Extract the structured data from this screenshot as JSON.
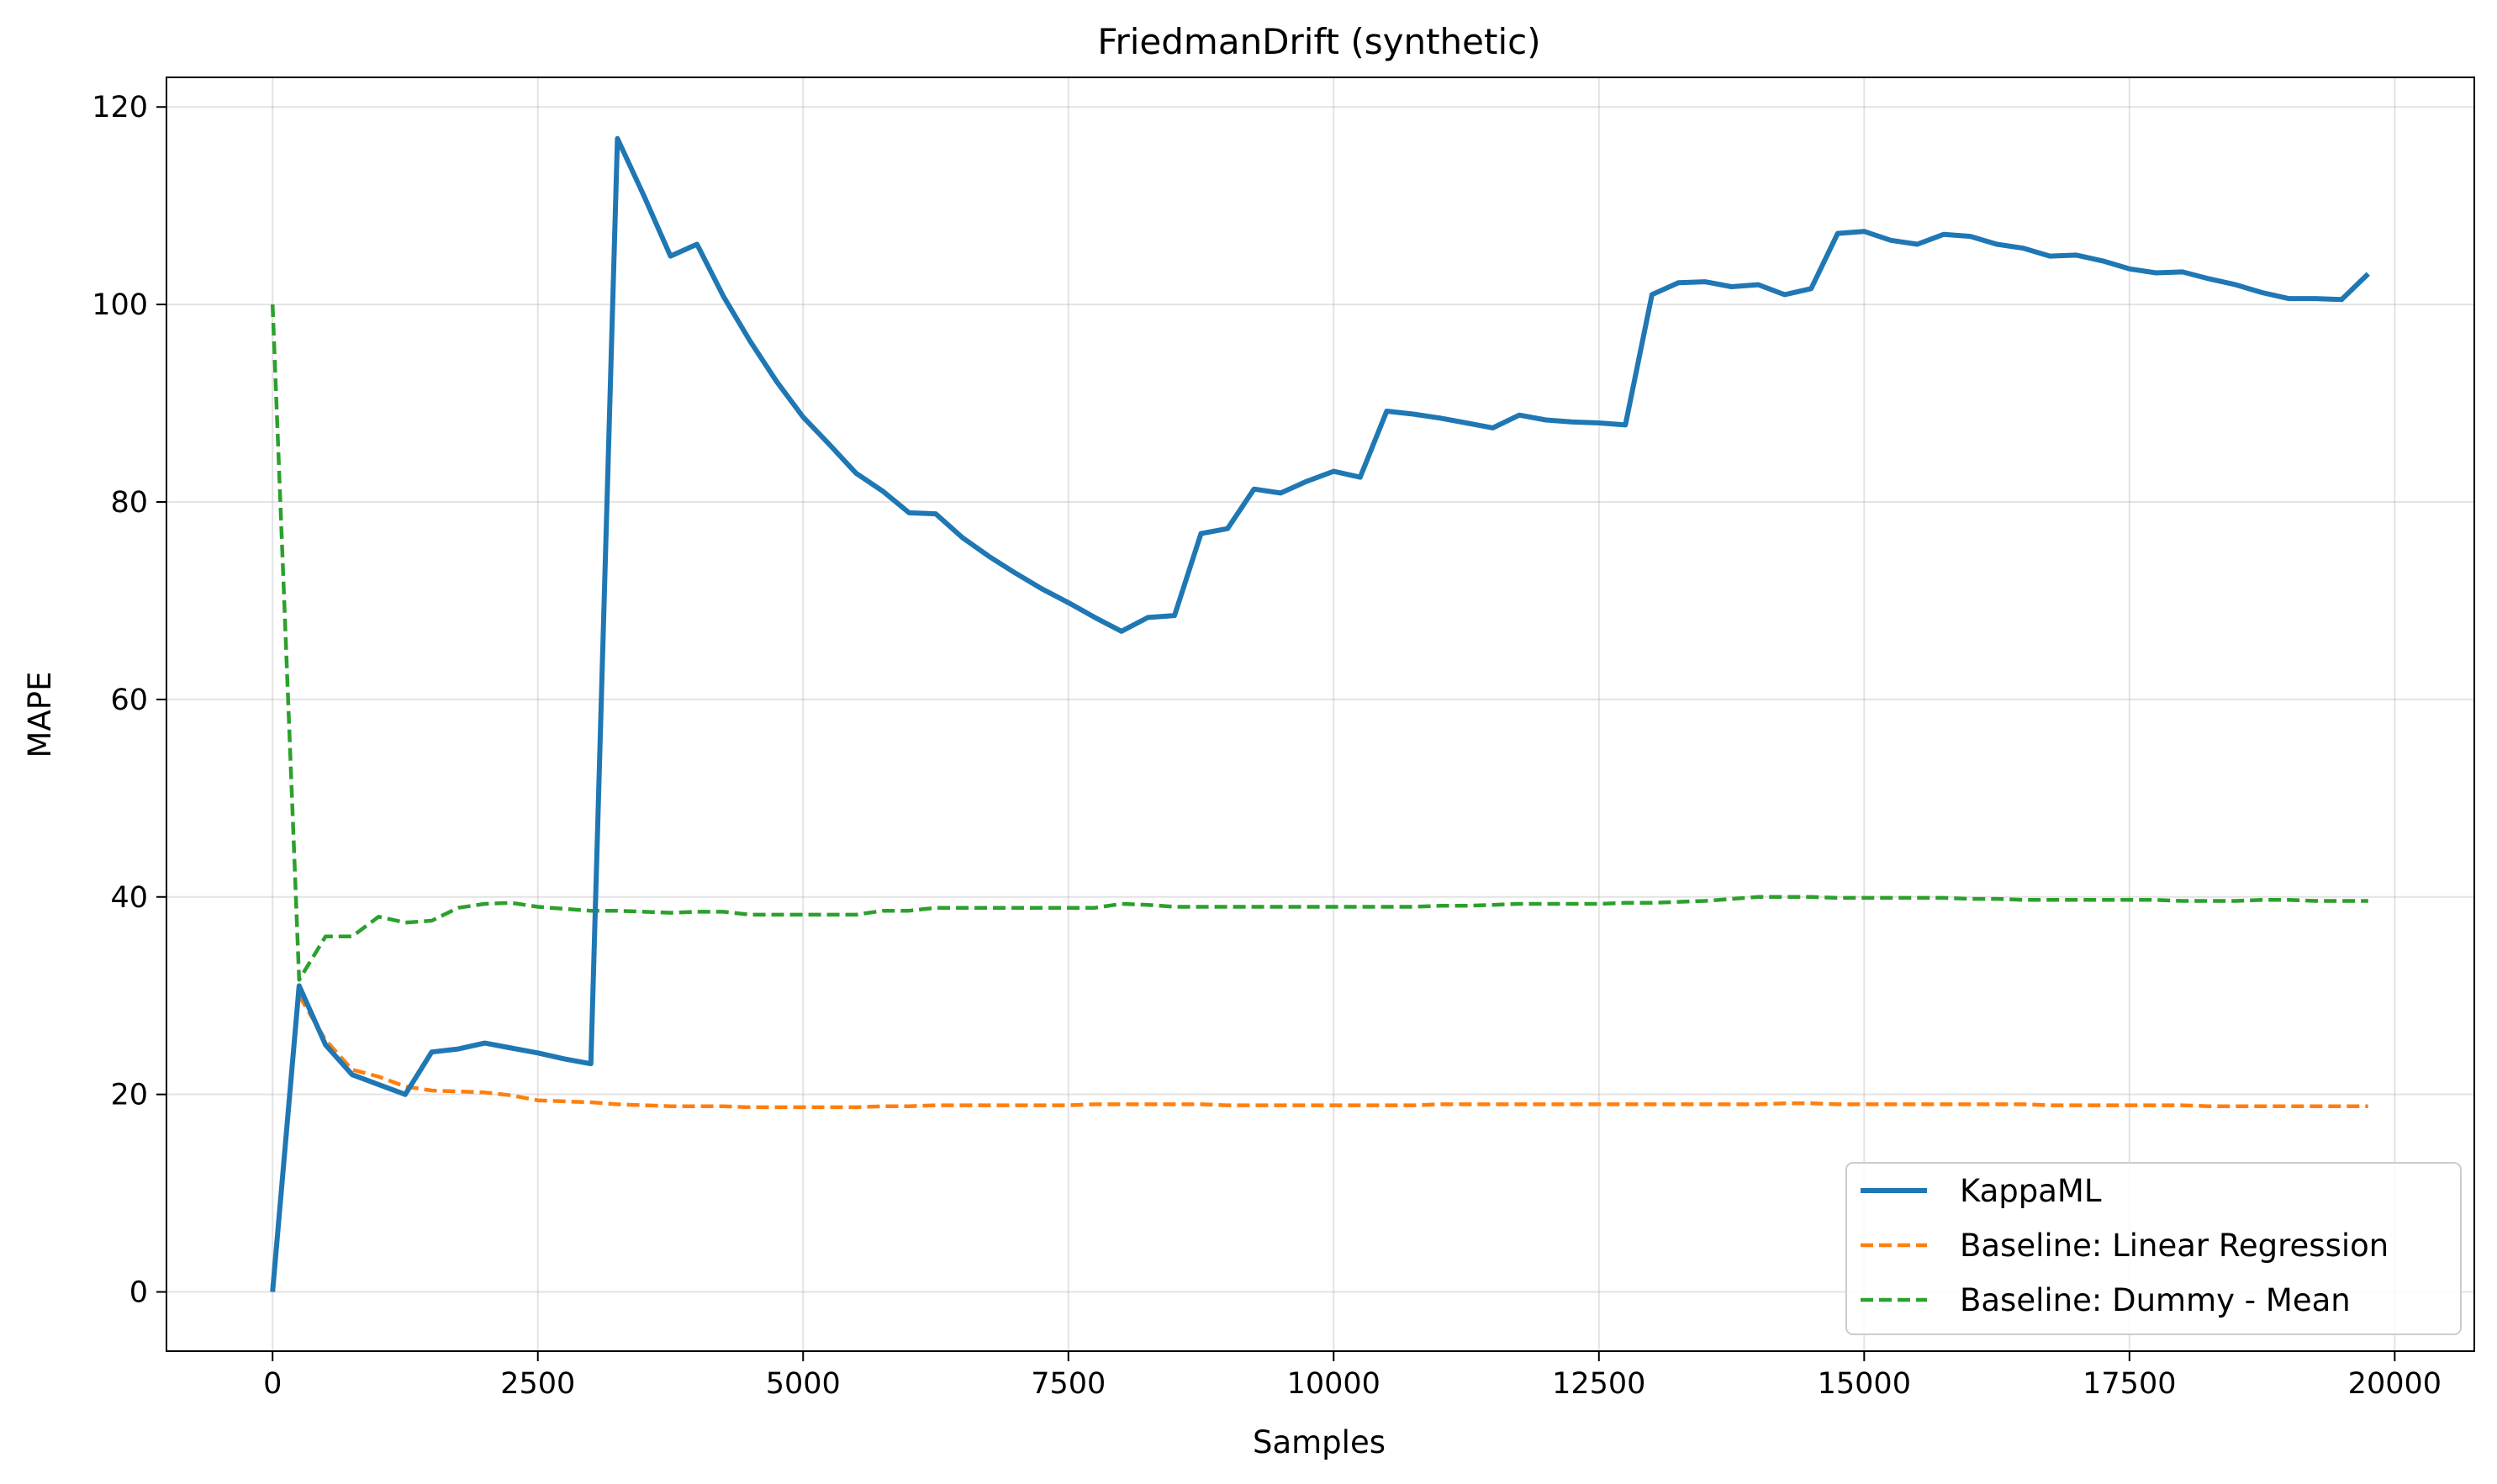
{
  "chart_data": {
    "type": "line",
    "title": "FriedmanDrift (synthetic)",
    "xlabel": "Samples",
    "ylabel": "MAPE",
    "xlim": [
      -1000,
      20750
    ],
    "ylim": [
      -6,
      123
    ],
    "xticks": [
      0,
      2500,
      5000,
      7500,
      10000,
      12500,
      15000,
      17500,
      20000
    ],
    "yticks": [
      0,
      20,
      40,
      60,
      80,
      100,
      120
    ],
    "grid": true,
    "legend_position": "lower-right",
    "x": [
      0,
      250,
      500,
      750,
      1000,
      1250,
      1500,
      1750,
      2000,
      2250,
      2500,
      2750,
      3000,
      3250,
      3500,
      3750,
      4000,
      4250,
      4500,
      4750,
      5000,
      5250,
      5500,
      5750,
      6000,
      6250,
      6500,
      6750,
      7000,
      7250,
      7500,
      7750,
      8000,
      8250,
      8500,
      8750,
      9000,
      9250,
      9500,
      9750,
      10000,
      10250,
      10500,
      10750,
      11000,
      11250,
      11500,
      11750,
      12000,
      12250,
      12500,
      12750,
      13000,
      13250,
      13500,
      13750,
      14000,
      14250,
      14500,
      14750,
      15000,
      15250,
      15500,
      15750,
      16000,
      16250,
      16500,
      16750,
      17000,
      17250,
      17500,
      17750,
      18000,
      18250,
      18500,
      18750,
      19000,
      19250,
      19500,
      19750
    ],
    "series": [
      {
        "name": "KappaML",
        "color": "#1f77b4",
        "style": "solid",
        "values": [
          0,
          31,
          25,
          22,
          21,
          20,
          24.3,
          24.6,
          25.2,
          24.7,
          24.2,
          23.6,
          23.1,
          116.8,
          111,
          104.9,
          106.1,
          100.8,
          96.3,
          92.2,
          88.6,
          85.8,
          82.9,
          81.1,
          78.9,
          78.8,
          76.4,
          74.5,
          72.8,
          71.2,
          69.8,
          68.3,
          66.9,
          68.3,
          68.5,
          76.8,
          77.3,
          81.3,
          80.9,
          82.1,
          83.1,
          82.5,
          89.2,
          88.9,
          88.5,
          88,
          87.5,
          88.8,
          88.3,
          88.1,
          88,
          87.8,
          101,
          102.2,
          102.3,
          101.8,
          102,
          101,
          101.6,
          107.2,
          107.4,
          106.5,
          106.1,
          107.1,
          106.9,
          106.1,
          105.7,
          104.9,
          105,
          104.4,
          103.6,
          103.2,
          103.3,
          102.6,
          102,
          101.2,
          100.6,
          100.6,
          100.5,
          103.1
        ]
      },
      {
        "name": "Baseline: Linear Regression",
        "color": "#ff7f0e",
        "style": "dashed",
        "values": [
          null,
          30,
          25.5,
          22.5,
          21.8,
          20.8,
          20.4,
          20.3,
          20.2,
          19.9,
          19.4,
          19.3,
          19.2,
          19,
          18.9,
          18.8,
          18.8,
          18.8,
          18.7,
          18.7,
          18.7,
          18.7,
          18.7,
          18.8,
          18.8,
          18.9,
          18.9,
          18.9,
          18.9,
          18.9,
          18.9,
          19,
          19,
          19,
          19,
          19,
          18.9,
          18.9,
          18.9,
          18.9,
          18.9,
          18.9,
          18.9,
          18.9,
          19,
          19,
          19,
          19,
          19,
          19,
          19,
          19,
          19,
          19,
          19,
          19,
          19,
          19.1,
          19.1,
          19,
          19,
          19,
          19,
          19,
          19,
          19,
          19,
          18.9,
          18.9,
          18.9,
          18.9,
          18.9,
          18.9,
          18.8,
          18.8,
          18.8,
          18.8,
          18.8,
          18.8,
          18.8
        ]
      },
      {
        "name": "Baseline: Dummy - Mean",
        "color": "#2ca02c",
        "style": "dashed",
        "values": [
          100,
          31.6,
          36,
          36,
          38,
          37.4,
          37.6,
          38.9,
          39.3,
          39.4,
          39,
          38.8,
          38.6,
          38.6,
          38.5,
          38.4,
          38.5,
          38.5,
          38.2,
          38.2,
          38.2,
          38.2,
          38.2,
          38.6,
          38.6,
          38.9,
          38.9,
          38.9,
          38.9,
          38.9,
          38.9,
          38.9,
          39.3,
          39.2,
          39,
          39,
          39,
          39,
          39,
          39,
          39,
          39,
          39,
          39,
          39.1,
          39.1,
          39.2,
          39.3,
          39.3,
          39.3,
          39.3,
          39.4,
          39.4,
          39.5,
          39.6,
          39.8,
          40,
          40,
          40,
          39.9,
          39.9,
          39.9,
          39.9,
          39.9,
          39.8,
          39.8,
          39.7,
          39.7,
          39.7,
          39.7,
          39.7,
          39.7,
          39.6,
          39.6,
          39.6,
          39.7,
          39.7,
          39.6,
          39.6,
          39.6
        ]
      }
    ]
  }
}
